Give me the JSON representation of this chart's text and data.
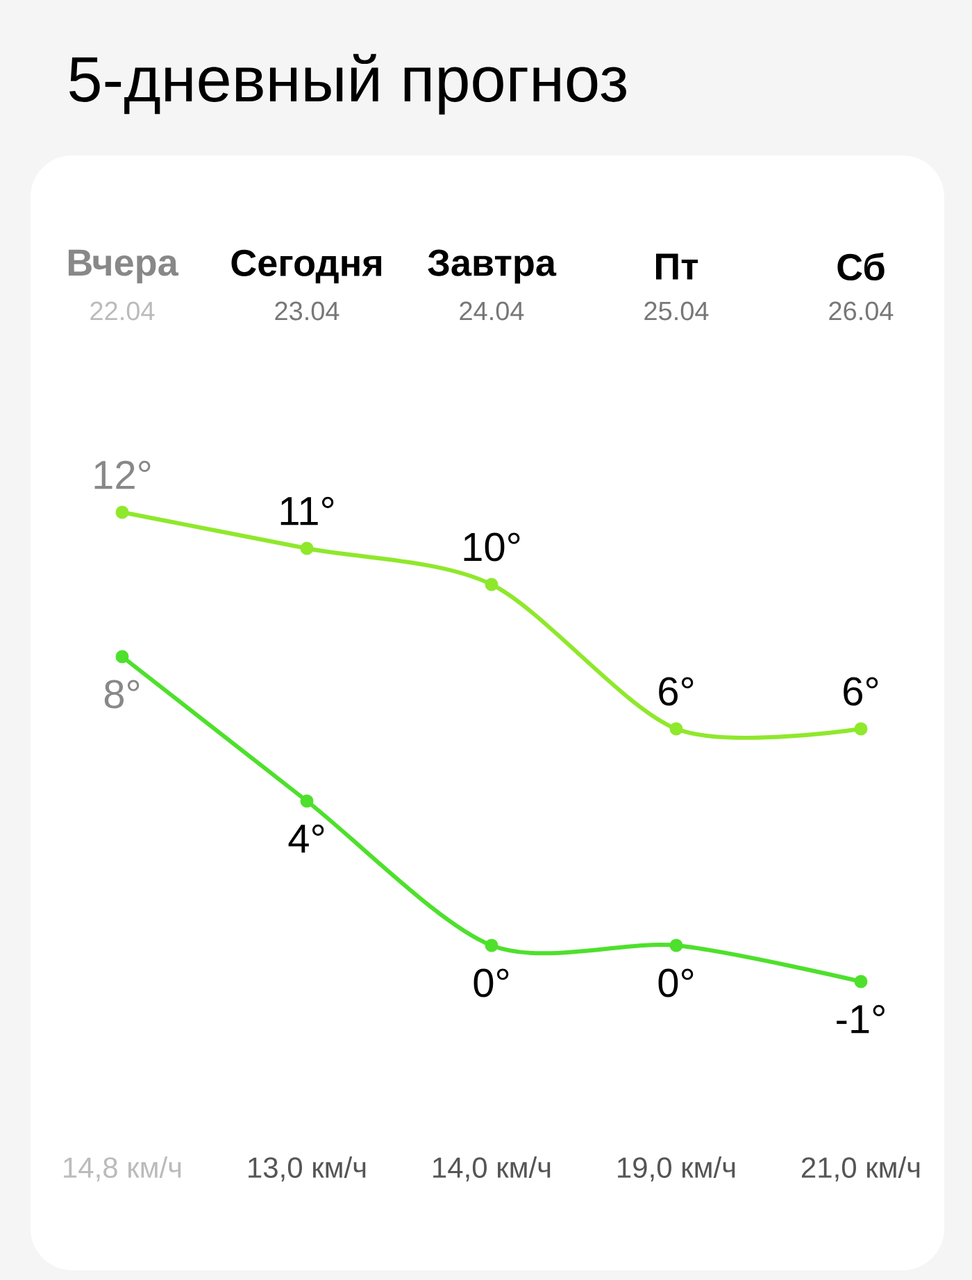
{
  "chart_data": {
    "type": "line",
    "title": "5-дневный прогноз",
    "categories": [
      "Вчера",
      "Сегодня",
      "Завтра",
      "Пт",
      "Сб"
    ],
    "series": [
      {
        "color": "#8fe82c",
        "values": [
          12,
          11,
          10,
          6,
          6
        ],
        "value_labels": [
          "12°",
          "11°",
          "10°",
          "6°",
          "6°"
        ]
      },
      {
        "color": "#4ee02c",
        "values": [
          8,
          4,
          0,
          0,
          -1
        ],
        "value_labels": [
          "8°",
          "4°",
          "0°",
          "0°",
          "-1°"
        ]
      }
    ],
    "marker": "circle",
    "line_style": "solid",
    "annotations": [
      "22.04",
      "23.04",
      "24.04",
      "25.04",
      "26.04",
      "14,8 км/ч",
      "13,0 км/ч",
      "14,0 км/ч",
      "19,0 км/ч",
      "21,0 км/ч"
    ]
  }
}
